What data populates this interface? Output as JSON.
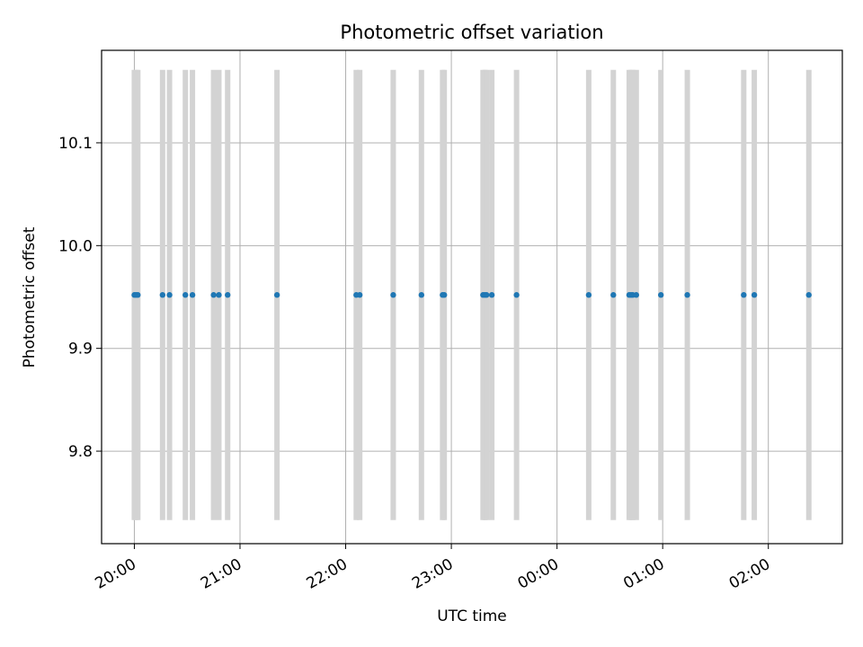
{
  "chart_data": {
    "type": "scatter",
    "title": "Photometric offset variation",
    "xlabel": "UTC time",
    "ylabel": "Photometric offset",
    "x_tick_labels": [
      "20:00",
      "21:00",
      "22:00",
      "23:00",
      "00:00",
      "01:00",
      "02:00"
    ],
    "x_tick_hours": [
      0,
      1,
      2,
      3,
      4,
      5,
      6
    ],
    "xlim_hours": [
      -0.31,
      6.7
    ],
    "y_ticks": [
      9.8,
      9.9,
      10.0,
      10.1
    ],
    "y_tick_labels": [
      "9.8",
      "9.9",
      "10.0",
      "10.1"
    ],
    "ylim": [
      9.71,
      10.19
    ],
    "grid": true,
    "points_time": [
      "20:00",
      "20:01",
      "20:02",
      "20:16",
      "20:20",
      "20:29",
      "20:33",
      "20:45",
      "20:48",
      "20:53",
      "21:21",
      "22:06",
      "22:08",
      "22:27",
      "22:43",
      "22:55",
      "22:56",
      "23:18",
      "23:19",
      "23:20",
      "23:23",
      "23:37",
      "00:18",
      "00:32",
      "00:41",
      "00:42",
      "00:43",
      "00:45",
      "00:59",
      "01:14",
      "01:46",
      "01:52",
      "02:23"
    ],
    "points_x_hours": [
      0.0,
      0.017,
      0.033,
      0.267,
      0.333,
      0.483,
      0.55,
      0.75,
      0.8,
      0.883,
      1.35,
      2.1,
      2.133,
      2.45,
      2.717,
      2.917,
      2.933,
      3.3,
      3.317,
      3.333,
      3.383,
      3.617,
      4.3,
      4.533,
      4.683,
      4.7,
      4.717,
      4.75,
      4.983,
      5.233,
      5.767,
      5.867,
      6.383
    ],
    "points_y": [
      9.952,
      9.952,
      9.952,
      9.952,
      9.952,
      9.952,
      9.952,
      9.952,
      9.952,
      9.952,
      9.952,
      9.952,
      9.952,
      9.952,
      9.952,
      9.952,
      9.952,
      9.952,
      9.952,
      9.952,
      9.952,
      9.952,
      9.952,
      9.952,
      9.952,
      9.952,
      9.952,
      9.952,
      9.952,
      9.952,
      9.952,
      9.952,
      9.952
    ],
    "error_bars": {
      "lower": 9.733,
      "upper": 10.171,
      "color": "#d3d3d3"
    },
    "marker_color": "#1f77b4"
  }
}
